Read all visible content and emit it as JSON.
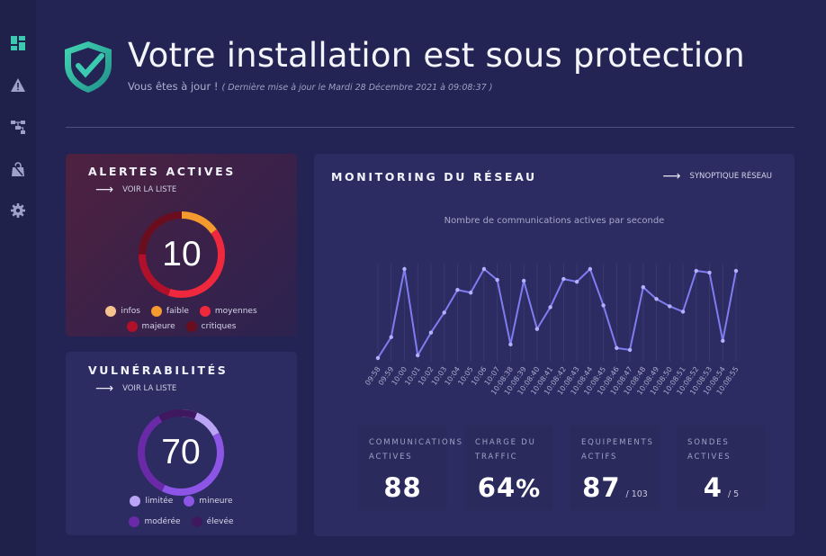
{
  "header": {
    "title": "Votre installation est sous protection",
    "status": "Vous êtes à jour !",
    "last_update": "( Dernière mise à jour le Mardi 28 Décembre 2021 à 09:08:37 )"
  },
  "sidebar": {
    "items": [
      {
        "icon": "dashboard-icon"
      },
      {
        "icon": "warning-icon"
      },
      {
        "icon": "network-icon"
      },
      {
        "icon": "lock-bag-icon"
      },
      {
        "icon": "gear-icon"
      }
    ]
  },
  "alerts": {
    "title": "ALERTES ACTIVES",
    "link": "VOIR LA LISTE",
    "total": "10",
    "legend": [
      {
        "label": "infos",
        "color": "#f6c38f"
      },
      {
        "label": "faible",
        "color": "#f59a2e"
      },
      {
        "label": "moyennes",
        "color": "#f0283d"
      },
      {
        "label": "majeure",
        "color": "#b0102a"
      },
      {
        "label": "critiques",
        "color": "#6a0d1e"
      }
    ]
  },
  "vulnerabilities": {
    "title": "VULNÉRABILITÉS",
    "link": "VOIR LA LISTE",
    "total": "70",
    "legend": [
      {
        "label": "limitée",
        "color": "#b9a4f5"
      },
      {
        "label": "mineure",
        "color": "#8c55e6"
      },
      {
        "label": "modérée",
        "color": "#6a2aa8"
      },
      {
        "label": "élevée",
        "color": "#3f1860"
      }
    ]
  },
  "network": {
    "title": "MONITORING DU RÉSEAU",
    "link": "SYNOPTIQUE RÉSEAU",
    "stats": [
      {
        "label": "COMMUNICATIONS ACTIVES",
        "value": "88",
        "unit": "",
        "total": ""
      },
      {
        "label": "CHARGE DU TRAFFIC",
        "value": "64",
        "unit": "%",
        "total": ""
      },
      {
        "label": "EQUIPEMENTS ACTIFS",
        "value": "87",
        "unit": "",
        "total": "/ 103"
      },
      {
        "label": "SONDES ACTIVES",
        "value": "4",
        "unit": "",
        "total": "/ 5"
      }
    ]
  },
  "chart_data": {
    "type": "line",
    "title": "Nombre de communications actives par seconde",
    "categories": [
      "09:58",
      "09:59",
      "10:00",
      "10:01",
      "10:02",
      "10:03",
      "10:04",
      "10:05",
      "10:06",
      "10:07",
      "10:08:38",
      "10:08:39",
      "10:08:40",
      "10:08:41",
      "10:08:42",
      "10:08:43",
      "10:08:44",
      "10:08:45",
      "10:08:46",
      "10:08:47",
      "10:08:48",
      "10:08:49",
      "10:08:50",
      "10:08:51",
      "10:08:52",
      "10:08:53",
      "10:08:54",
      "10:08:55"
    ],
    "series": [
      {
        "values": [
          2,
          25,
          100,
          5,
          30,
          52,
          77,
          74,
          100,
          88,
          17,
          87,
          34,
          58,
          89,
          86,
          100,
          60,
          13,
          11,
          80,
          67,
          59,
          53,
          98,
          96,
          21,
          98
        ]
      }
    ],
    "ylim": [
      0,
      100
    ],
    "grid": true,
    "line_color": "#7f7cf0"
  }
}
